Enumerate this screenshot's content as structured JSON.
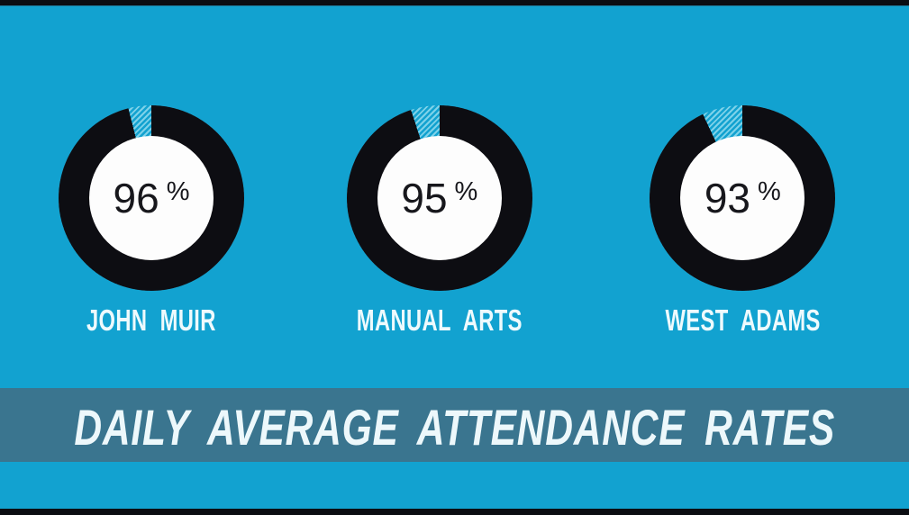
{
  "page": {
    "background_color": "#12a2d0",
    "letterbox_color": "#0b0d12"
  },
  "chart_data": {
    "type": "donut",
    "title": "DAILY AVERAGE ATTENDANCE RATES",
    "unit": "%",
    "value_range": [
      0,
      100
    ],
    "series": [
      {
        "label": "JOHN MUIR",
        "value": 96
      },
      {
        "label": "MANUAL ARTS",
        "value": 95
      },
      {
        "label": "WEST ADAMS",
        "value": 93
      }
    ],
    "layout_hints": {
      "ring_start": "12 o'clock, clockwise",
      "remainder_style": "diagonal light-blue hatch on cyan background"
    },
    "colors": {
      "ring": "#0d0d12",
      "center": "#fdfdfd",
      "remainder_hatch": "#7ed2e9",
      "value_text": "#17171c",
      "label_text": "#eefafd"
    }
  },
  "banner": {
    "text": "DAILY AVERAGE ATTENDANCE RATES",
    "background_color": "#3a758f",
    "text_color": "#edf8fb"
  }
}
